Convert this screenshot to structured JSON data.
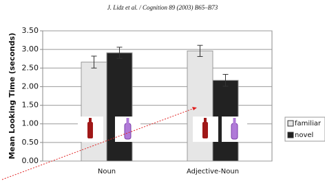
{
  "header": "J. Lidz et al. / Cognition 89 (2003) B65–B73",
  "chart_data": {
    "type": "bar",
    "ylabel": "Mean Looking Time (seconds)",
    "categories": [
      "Noun",
      "Adjective-Noun"
    ],
    "series": [
      {
        "name": "familiar",
        "color": "#e6e6e6",
        "values": [
          2.66,
          2.96
        ],
        "errors": [
          0.16,
          0.15
        ]
      },
      {
        "name": "novel",
        "color": "#222222",
        "values": [
          2.91,
          2.17
        ],
        "errors": [
          0.15,
          0.16
        ]
      }
    ],
    "ylim": [
      0,
      3.5
    ],
    "yticks": [
      {
        "value": 0,
        "label": "0.00"
      },
      {
        "value": 0.5,
        "label": "0.50"
      },
      {
        "value": 1,
        "label": "1.00"
      },
      {
        "value": 1.5,
        "label": "1.50"
      },
      {
        "value": 2,
        "label": "2.00"
      },
      {
        "value": 2.5,
        "label": "2.50"
      },
      {
        "value": 3,
        "label": "3.00"
      },
      {
        "value": 3.5,
        "label": "3.50"
      }
    ],
    "grid": true
  }
}
